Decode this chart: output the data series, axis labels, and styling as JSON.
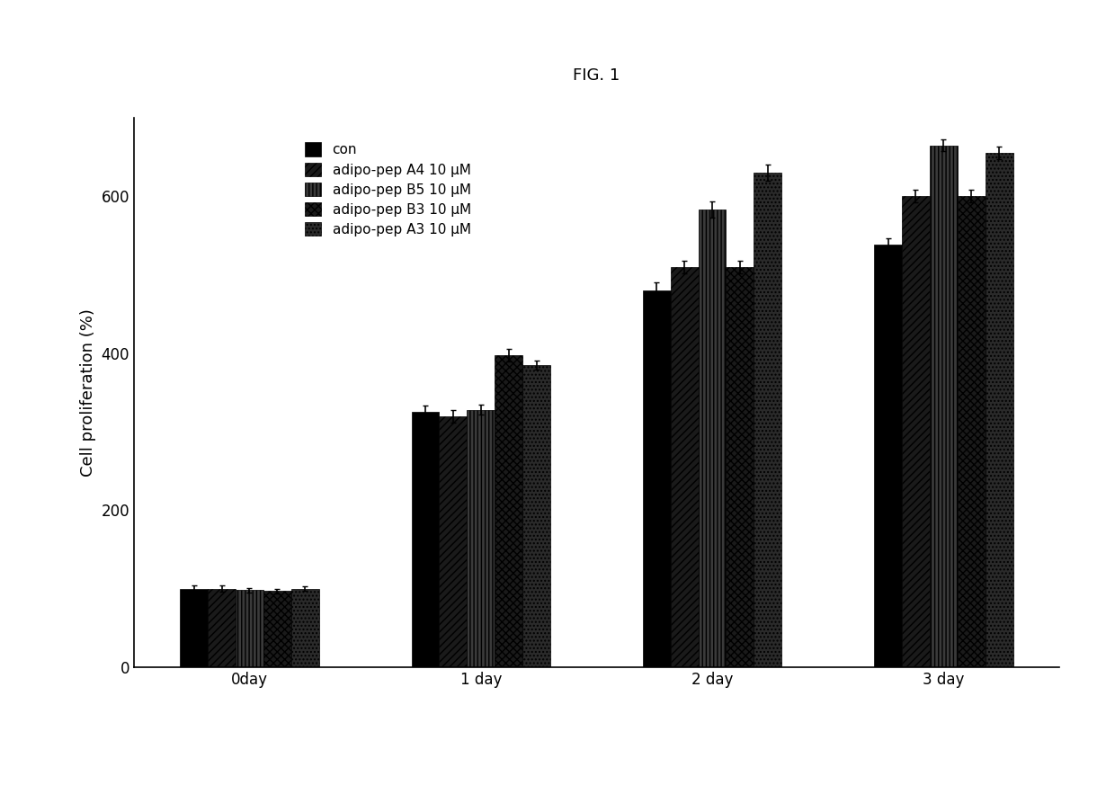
{
  "title": "FIG. 1",
  "xlabel_groups": [
    "0day",
    "1 day",
    "2 day",
    "3 day"
  ],
  "ylabel": "Cell proliferation (%)",
  "series_labels": [
    "con",
    "adipo-pep A4 10 μM",
    "adipo-pep B5 10 μM",
    "adipo-pep B3 10 μM",
    "adipo-pep A3 10 μM"
  ],
  "values": [
    [
      100,
      100,
      98,
      97,
      100
    ],
    [
      325,
      320,
      328,
      398,
      385
    ],
    [
      480,
      510,
      583,
      510,
      630
    ],
    [
      538,
      600,
      665,
      600,
      655
    ]
  ],
  "errors": [
    [
      4,
      4,
      3,
      3,
      3
    ],
    [
      8,
      8,
      6,
      8,
      6
    ],
    [
      10,
      8,
      10,
      8,
      10
    ],
    [
      8,
      8,
      8,
      8,
      8
    ]
  ],
  "ylim": [
    0,
    700
  ],
  "yticks": [
    0,
    200,
    400,
    600
  ],
  "bar_width": 0.12,
  "background_color": "#ffffff",
  "title_fontsize": 13,
  "axis_fontsize": 13,
  "tick_fontsize": 12,
  "legend_fontsize": 11
}
